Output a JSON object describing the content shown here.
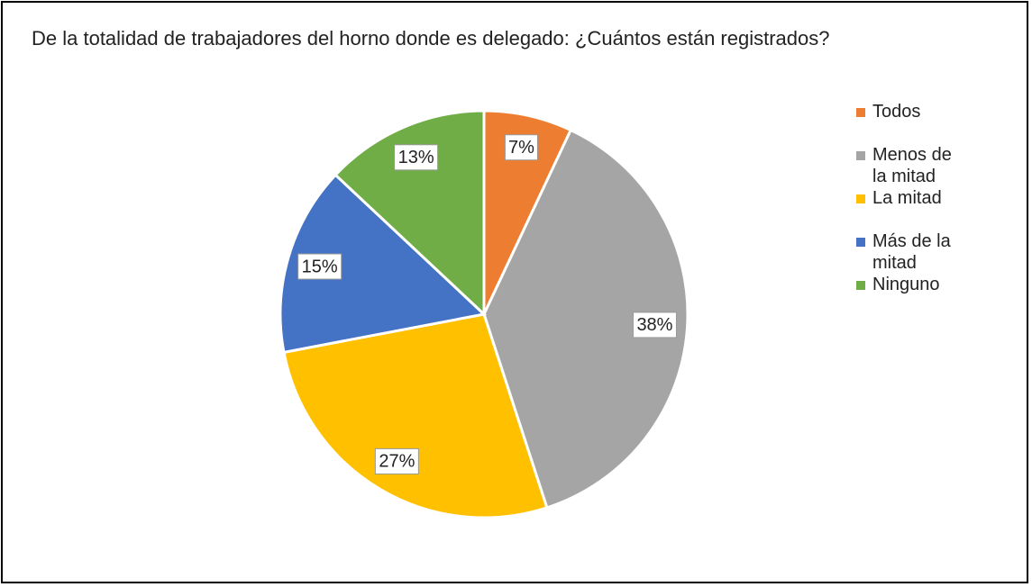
{
  "chart_data": {
    "type": "pie",
    "title": "De la totalidad de trabajadores del horno donde es delegado: ¿Cuántos están registrados?",
    "categories": [
      "Todos",
      "Menos de la mitad",
      "La mitad",
      "Más de la mitad",
      "Ninguno"
    ],
    "values": [
      7,
      38,
      27,
      15,
      13
    ],
    "value_labels": [
      "7%",
      "38%",
      "27%",
      "15%",
      "13%"
    ],
    "colors": [
      "#ED7D31",
      "#A5A5A5",
      "#FFC000",
      "#4472C4",
      "#70AD47"
    ],
    "legend": "right"
  }
}
